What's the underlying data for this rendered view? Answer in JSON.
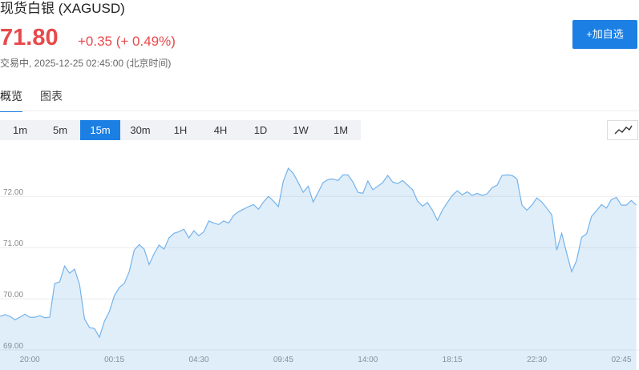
{
  "header": {
    "title": "现货白银 (XAGUSD)",
    "price": "71.80",
    "change": "+0.35 (+ 0.49%)",
    "status": "交易中, 2025-12-25 02:45:00 (北京时间)"
  },
  "button": "+加自选",
  "tabs": [
    "概览",
    "图表"
  ],
  "periods": [
    "1m",
    "5m",
    "15m",
    "30m",
    "1H",
    "4H",
    "1D",
    "1W",
    "1M"
  ],
  "chart_data": {
    "type": "area",
    "color": "#74b3ea",
    "grid": true,
    "ylim": [
      68.61,
      73.02
    ],
    "yticks": [
      {
        "value": 69,
        "label": "69.00"
      },
      {
        "value": 70,
        "label": "70.00"
      },
      {
        "value": 71,
        "label": "71.00"
      },
      {
        "value": 72,
        "label": "72.00"
      }
    ],
    "categories": [
      null,
      null,
      null,
      null,
      null,
      null,
      "20:00",
      null,
      null,
      null,
      null,
      null,
      null,
      null,
      null,
      null,
      null,
      null,
      null,
      null,
      null,
      null,
      null,
      "00:15",
      null,
      null,
      null,
      null,
      null,
      null,
      null,
      null,
      null,
      null,
      null,
      null,
      null,
      null,
      null,
      null,
      "04:30",
      null,
      null,
      null,
      null,
      null,
      null,
      null,
      null,
      null,
      null,
      null,
      null,
      null,
      null,
      null,
      null,
      "09:45",
      null,
      null,
      null,
      null,
      null,
      null,
      null,
      null,
      null,
      null,
      null,
      null,
      null,
      null,
      null,
      null,
      "14:00",
      null,
      null,
      null,
      null,
      null,
      null,
      null,
      null,
      null,
      null,
      null,
      null,
      null,
      null,
      null,
      null,
      "18:15",
      null,
      null,
      null,
      null,
      null,
      null,
      null,
      null,
      null,
      null,
      null,
      null,
      null,
      null,
      null,
      null,
      "22:30",
      null,
      null,
      null,
      null,
      null,
      null,
      null,
      null,
      null,
      null,
      null,
      null,
      null,
      null,
      null,
      null,
      "02:45",
      null,
      null,
      null
    ],
    "values": [
      69.66,
      69.69,
      69.66,
      69.59,
      69.64,
      69.7,
      69.64,
      69.64,
      69.67,
      69.63,
      69.64,
      70.3,
      70.33,
      70.64,
      70.5,
      70.58,
      70.28,
      69.61,
      69.44,
      69.42,
      69.25,
      69.56,
      69.75,
      70.06,
      70.22,
      70.3,
      70.53,
      70.95,
      71.06,
      70.97,
      70.67,
      70.88,
      71.05,
      70.97,
      71.19,
      71.28,
      71.31,
      71.36,
      71.19,
      71.33,
      71.23,
      71.31,
      71.52,
      71.48,
      71.45,
      71.52,
      71.48,
      71.63,
      71.7,
      71.75,
      71.8,
      71.84,
      71.75,
      71.89,
      72.0,
      71.91,
      71.8,
      72.3,
      72.55,
      72.45,
      72.27,
      72.08,
      72.2,
      71.89,
      72.08,
      72.27,
      72.33,
      72.34,
      72.31,
      72.42,
      72.42,
      72.28,
      72.08,
      72.06,
      72.3,
      72.13,
      72.2,
      72.27,
      72.41,
      72.28,
      72.25,
      72.31,
      72.22,
      72.13,
      71.91,
      71.81,
      71.88,
      71.73,
      71.53,
      71.73,
      71.88,
      72.02,
      72.11,
      72.03,
      72.09,
      72.02,
      72.06,
      72.02,
      72.05,
      72.17,
      72.22,
      72.41,
      72.42,
      72.41,
      72.34,
      71.83,
      71.73,
      71.83,
      71.97,
      71.89,
      71.77,
      71.64,
      70.95,
      71.28,
      70.89,
      70.53,
      70.75,
      71.2,
      71.27,
      71.61,
      71.72,
      71.84,
      71.77,
      71.94,
      71.98,
      71.83,
      71.83,
      71.92,
      71.83
    ]
  }
}
